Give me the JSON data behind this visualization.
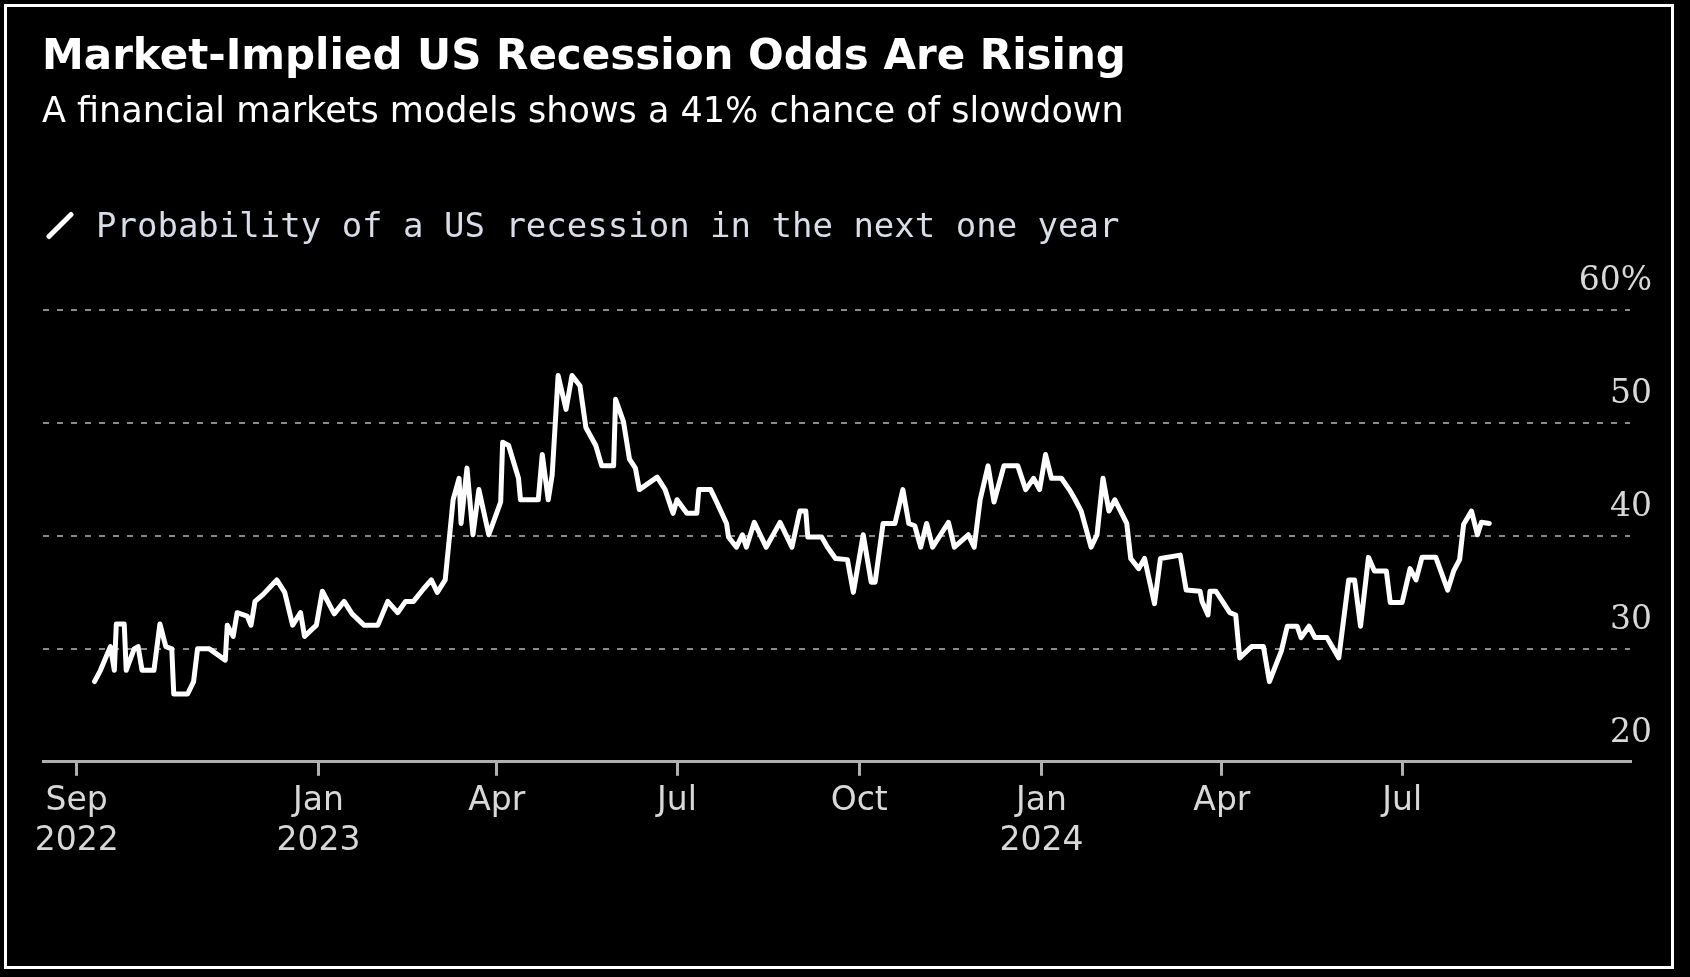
{
  "chart_data": {
    "type": "line",
    "title": "Market-Implied US Recession Odds Are Rising",
    "subtitle": "A financial markets models shows a 41% chance of slowdown",
    "x": [
      "2022-09-10",
      "2022-09-13",
      "2022-09-18",
      "2022-09-20",
      "2022-09-21",
      "2022-09-25",
      "2022-09-26",
      "2022-09-30",
      "2022-10-02",
      "2022-10-04",
      "2022-10-10",
      "2022-10-13",
      "2022-10-16",
      "2022-10-19",
      "2022-10-20",
      "2022-10-27",
      "2022-10-30",
      "2022-11-01",
      "2022-11-07",
      "2022-11-15",
      "2022-11-16",
      "2022-11-19",
      "2022-11-21",
      "2022-11-26",
      "2022-11-28",
      "2022-11-30",
      "2022-12-04",
      "2022-12-11",
      "2022-12-15",
      "2022-12-19",
      "2022-12-23",
      "2022-12-25",
      "2022-12-31",
      "2023-01-03",
      "2023-01-09",
      "2023-01-14",
      "2023-01-18",
      "2023-01-24",
      "2023-01-31",
      "2023-02-05",
      "2023-02-10",
      "2023-02-14",
      "2023-02-18",
      "2023-02-23",
      "2023-02-27",
      "2023-03-02",
      "2023-03-06",
      "2023-03-10",
      "2023-03-13",
      "2023-03-14",
      "2023-03-17",
      "2023-03-20",
      "2023-03-23",
      "2023-03-28",
      "2023-04-03",
      "2023-04-04",
      "2023-04-07",
      "2023-04-12",
      "2023-04-13",
      "2023-04-22",
      "2023-04-24",
      "2023-04-27",
      "2023-04-29",
      "2023-05-02",
      "2023-05-06",
      "2023-05-09",
      "2023-05-13",
      "2023-05-16",
      "2023-05-21",
      "2023-05-24",
      "2023-05-30",
      "2023-05-31",
      "2023-06-04",
      "2023-06-07",
      "2023-06-10",
      "2023-06-12",
      "2023-06-21",
      "2023-06-25",
      "2023-06-29",
      "2023-07-01",
      "2023-07-06",
      "2023-07-11",
      "2023-07-12",
      "2023-07-18",
      "2023-07-21",
      "2023-07-26",
      "2023-07-27",
      "2023-07-31",
      "2023-08-03",
      "2023-08-05",
      "2023-08-09",
      "2023-08-15",
      "2023-08-22",
      "2023-08-28",
      "2023-09-01",
      "2023-09-04",
      "2023-09-05",
      "2023-09-12",
      "2023-09-15",
      "2023-09-19",
      "2023-09-25",
      "2023-09-28",
      "2023-10-03",
      "2023-10-07",
      "2023-10-09",
      "2023-10-13",
      "2023-10-19",
      "2023-10-23",
      "2023-10-26",
      "2023-10-29",
      "2023-11-01",
      "2023-11-04",
      "2023-11-07",
      "2023-11-11",
      "2023-11-15",
      "2023-11-18",
      "2023-11-25",
      "2023-11-28",
      "2023-12-01",
      "2023-12-05",
      "2023-12-08",
      "2023-12-13",
      "2023-12-20",
      "2023-12-24",
      "2023-12-28",
      "2023-12-31",
      "2024-01-03",
      "2024-01-06",
      "2024-01-11",
      "2024-01-15",
      "2024-01-18",
      "2024-01-21",
      "2024-01-26",
      "2024-01-29",
      "2024-02-01",
      "2024-02-04",
      "2024-02-07",
      "2024-02-13",
      "2024-02-15",
      "2024-02-19",
      "2024-02-22",
      "2024-02-27",
      "2024-03-01",
      "2024-03-11",
      "2024-03-14",
      "2024-03-21",
      "2024-03-22",
      "2024-03-25",
      "2024-03-26",
      "2024-03-29",
      "2024-04-05",
      "2024-04-08",
      "2024-04-10",
      "2024-04-16",
      "2024-04-22",
      "2024-04-25",
      "2024-05-01",
      "2024-05-04",
      "2024-05-09",
      "2024-05-11",
      "2024-05-15",
      "2024-05-18",
      "2024-05-24",
      "2024-05-30",
      "2024-06-04",
      "2024-06-07",
      "2024-06-10",
      "2024-06-14",
      "2024-06-17",
      "2024-06-23",
      "2024-06-25",
      "2024-07-01",
      "2024-07-05",
      "2024-07-08",
      "2024-07-11",
      "2024-07-18",
      "2024-07-24",
      "2024-07-27",
      "2024-07-30",
      "2024-08-01",
      "2024-08-05",
      "2024-08-08",
      "2024-08-10",
      "2024-08-14"
    ],
    "series": [
      {
        "name": "Probability of a US recession in the next one year",
        "color": "#ffffff",
        "values": [
          27.1,
          28.1,
          30.2,
          28.1,
          32.2,
          32.2,
          28.1,
          30.0,
          30.2,
          28.1,
          28.1,
          32.2,
          30.2,
          30.0,
          26.0,
          26.0,
          27.1,
          30.0,
          30.0,
          29.0,
          32.1,
          31.1,
          33.2,
          32.9,
          32.1,
          34.2,
          34.8,
          36.1,
          35.0,
          32.1,
          33.2,
          31.1,
          32.1,
          35.1,
          33.1,
          34.2,
          33.1,
          32.1,
          32.1,
          34.2,
          33.2,
          34.2,
          34.2,
          35.3,
          36.1,
          35.0,
          36.1,
          43.2,
          45.1,
          41.1,
          46.0,
          40.1,
          44.1,
          40.1,
          43.0,
          48.3,
          48.0,
          45.1,
          43.2,
          43.2,
          47.2,
          43.2,
          45.4,
          54.2,
          51.2,
          54.2,
          53.3,
          49.6,
          48.0,
          46.2,
          46.2,
          52.1,
          50.1,
          46.8,
          46.0,
          44.1,
          45.2,
          44.1,
          42.0,
          43.2,
          42.0,
          42.0,
          44.1,
          44.1,
          43.0,
          41.1,
          39.9,
          39.0,
          40.1,
          39.0,
          41.2,
          39.0,
          41.2,
          39.0,
          42.2,
          42.2,
          39.9,
          39.9,
          39.0,
          38.0,
          37.9,
          35.0,
          40.1,
          35.9,
          35.9,
          41.1,
          41.1,
          44.1,
          41.1,
          40.9,
          39.0,
          41.1,
          39.0,
          40.1,
          41.2,
          39.0,
          40.1,
          39.0,
          43.2,
          46.2,
          43.0,
          46.2,
          46.2,
          44.1,
          45.1,
          44.1,
          47.2,
          45.1,
          45.1,
          44.1,
          43.2,
          42.2,
          39.0,
          40.1,
          45.1,
          42.2,
          43.2,
          41.1,
          38.0,
          37.1,
          38.0,
          34.0,
          38.0,
          38.3,
          35.2,
          35.1,
          34.2,
          33.0,
          35.1,
          35.1,
          33.2,
          33.0,
          29.2,
          30.2,
          30.2,
          27.1,
          29.8,
          32.0,
          32.0,
          31.0,
          32.0,
          31.0,
          31.0,
          29.2,
          36.1,
          36.1,
          32.0,
          38.1,
          36.9,
          36.9,
          34.1,
          34.1,
          37.1,
          36.1,
          38.1,
          38.1,
          35.2,
          36.9,
          37.9,
          41.0,
          42.2,
          40.1,
          41.2,
          41.1
        ]
      }
    ],
    "xlim": [
      "2022-08-15",
      "2024-10-24"
    ],
    "xticks": [
      {
        "value": "2022-09-01",
        "label": "Sep 2022"
      },
      {
        "value": "2023-01-01",
        "label": "Jan 2023"
      },
      {
        "value": "2023-04-01",
        "label": "Apr"
      },
      {
        "value": "2023-07-01",
        "label": "Jul"
      },
      {
        "value": "2023-10-01",
        "label": "Oct"
      },
      {
        "value": "2024-01-01",
        "label": "Jan 2024"
      },
      {
        "value": "2024-04-01",
        "label": "Apr"
      },
      {
        "value": "2024-07-01",
        "label": "Jul"
      }
    ],
    "ylim": [
      20,
      60
    ],
    "yticks": [
      20,
      30,
      40,
      50,
      {
        "value": 60,
        "label": "60%"
      }
    ],
    "grid": "y",
    "legend": "top left",
    "marker": "none"
  }
}
